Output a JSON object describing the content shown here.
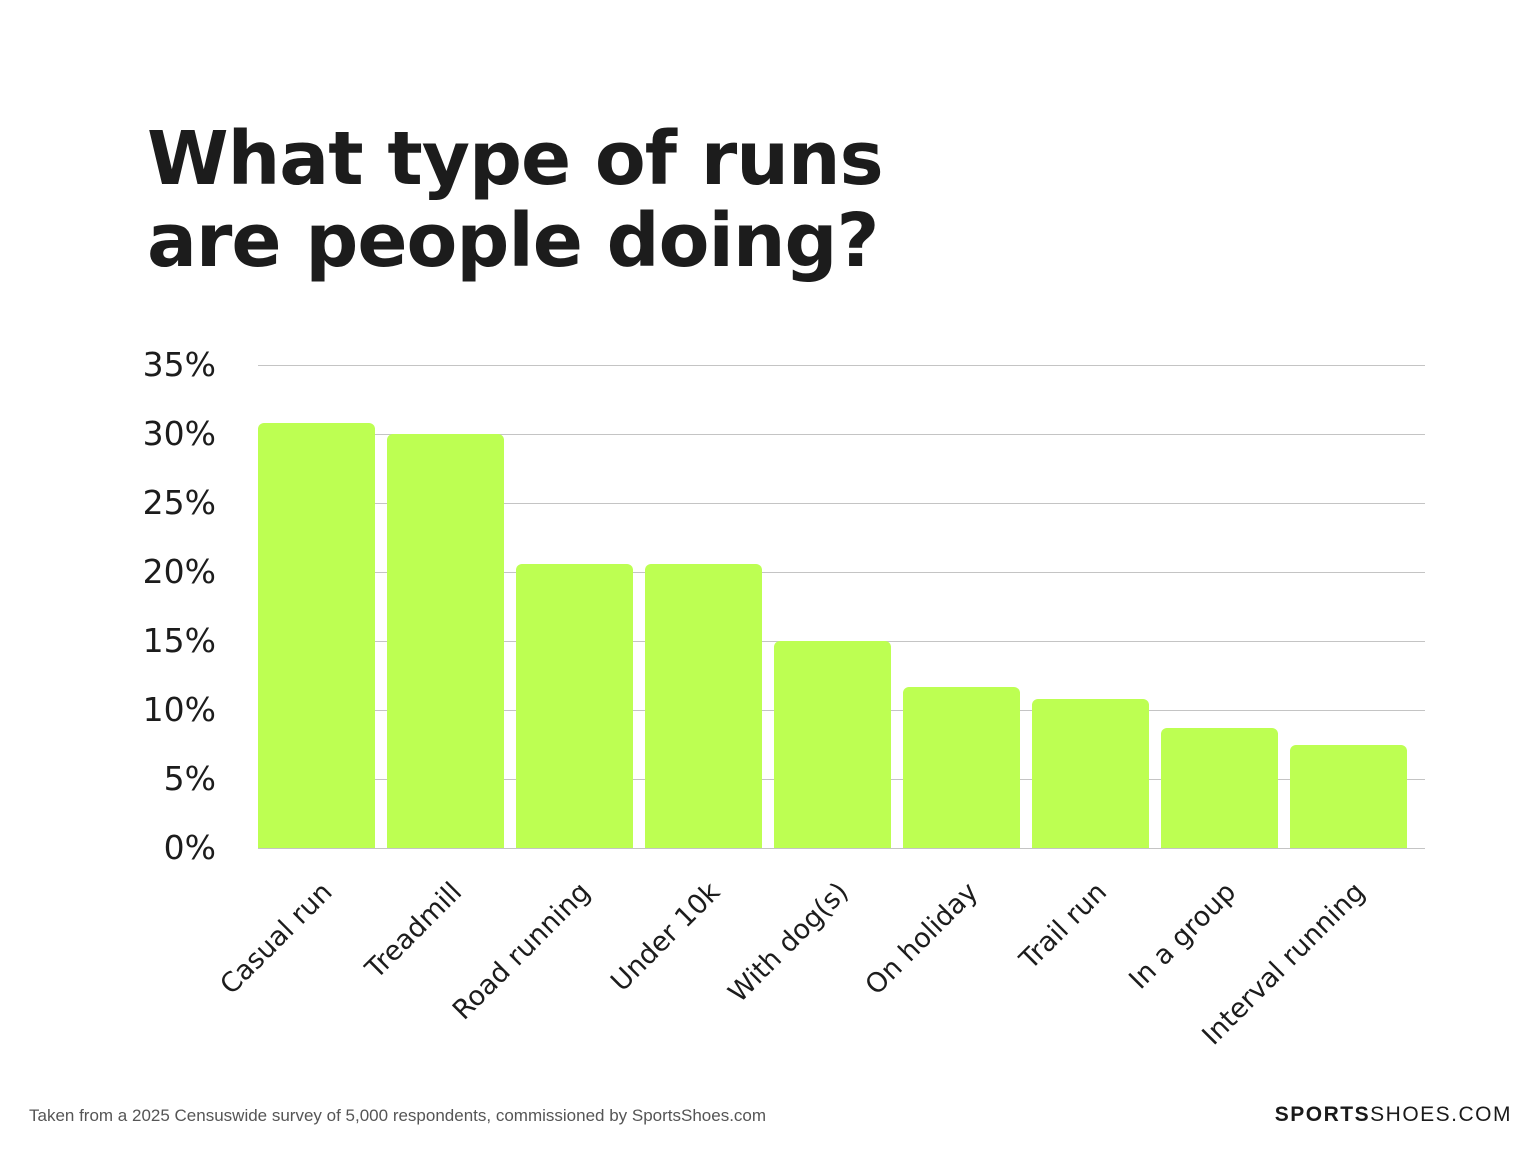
{
  "title": {
    "line1": "What type of runs",
    "line2": "are people doing?"
  },
  "chart_data": {
    "type": "bar",
    "title": "What type of runs are people doing?",
    "xlabel": "",
    "ylabel": "",
    "categories": [
      "Casual run",
      "Treadmill",
      "Road running",
      "Under 10k",
      "With dog(s)",
      "On holiday",
      "Trail run",
      "In a group",
      "Interval running"
    ],
    "values": [
      30.8,
      30.0,
      20.6,
      20.6,
      15.0,
      11.7,
      10.8,
      8.7,
      7.5
    ],
    "unit": "%",
    "ylim": [
      0,
      35
    ],
    "yticks": [
      "0%",
      "5%",
      "10%",
      "15%",
      "20%",
      "25%",
      "30%",
      "35%"
    ],
    "grid": true,
    "legend": "none",
    "bar_color": "#bdff52"
  },
  "footer": {
    "source": "Taken from a 2025 Censuswide survey of 5,000 respondents, commissioned by SportsShoes.com",
    "brand_bold": "SPORTS",
    "brand_regular": "SHOES.COM"
  }
}
